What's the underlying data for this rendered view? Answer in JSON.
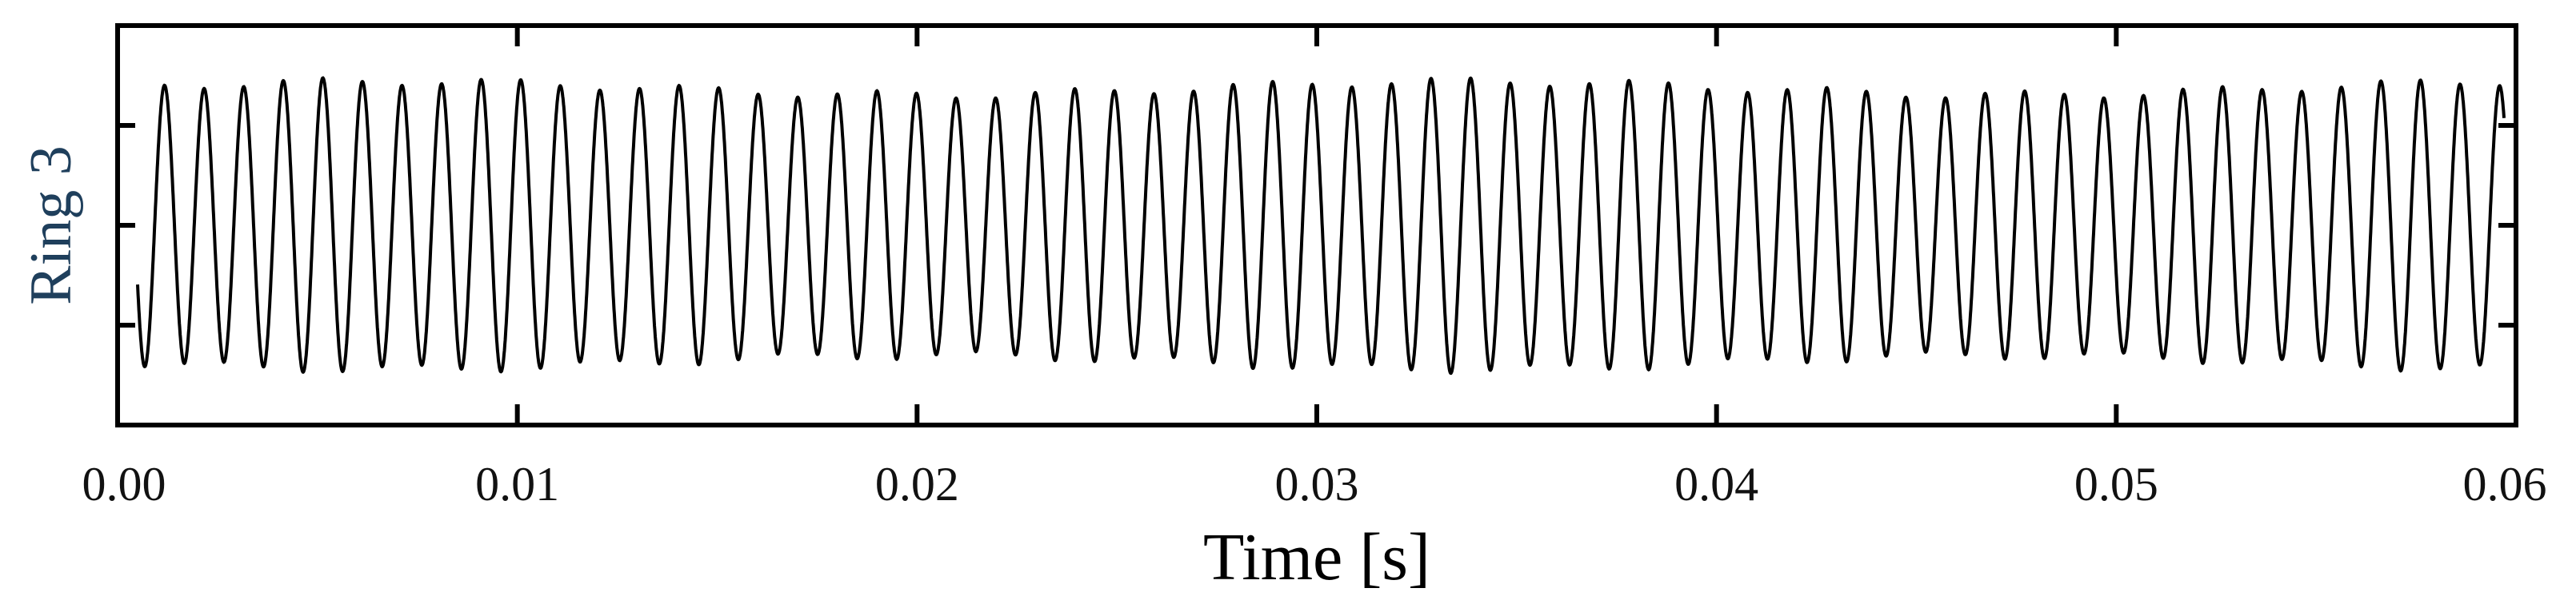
{
  "chart_data": {
    "type": "line",
    "title": "",
    "xlabel": "Time [s]",
    "ylabel": "Ring 3",
    "xlim": [
      0.0,
      0.06
    ],
    "ylim": [
      -1.4,
      1.4
    ],
    "x_ticks": [
      "0.00",
      "0.01",
      "0.02",
      "0.03",
      "0.04",
      "0.05",
      "0.06"
    ],
    "x_tick_values": [
      0.0,
      0.01,
      0.02,
      0.03,
      0.04,
      0.05,
      0.06
    ],
    "y_tick_values": [
      -0.7,
      0.0,
      0.7
    ],
    "y_tick_labels_shown": false,
    "grid": false,
    "legend": "none",
    "series": [
      {
        "signal": "sinusoid",
        "frequency_hz": 1010,
        "amplitude": 0.96,
        "amplitude_variation": 0.05,
        "phase_rad": 0.4,
        "x_range": [
          0.0005,
          0.0597
        ]
      }
    ],
    "color": "#000000"
  }
}
